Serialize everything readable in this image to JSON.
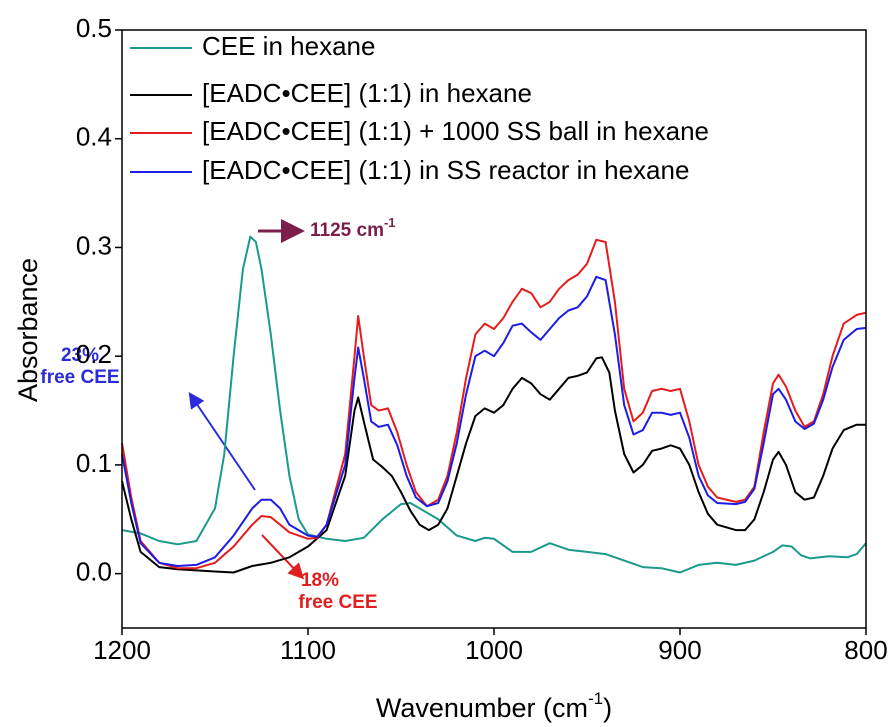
{
  "chart_data": {
    "type": "line",
    "ylabel": "Absorbance",
    "xlabel": [
      "Wavenumber (cm",
      "-1",
      ")"
    ],
    "xlim": [
      1200,
      800
    ],
    "ylim": [
      -0.05,
      0.5
    ],
    "xticks": [
      1200,
      1100,
      1000,
      900,
      800
    ],
    "yticks": [
      {
        "value": 0,
        "label": "0.0"
      },
      0.1,
      0.2,
      0.3,
      0.4,
      0.5
    ],
    "legend": "upper left",
    "annotations": [
      {
        "text": [
          "1125 cm",
          "-1"
        ],
        "color": "#7b1f4a"
      },
      {
        "text": [
          "23%",
          "free CEE"
        ],
        "color": "#2b2bd9"
      },
      {
        "text": [
          "18%",
          "free CEE"
        ],
        "color": "#e02020"
      }
    ],
    "series": [
      {
        "name": "CEE in hexane",
        "color": "#1a9a8a",
        "x": [
          1200,
          1190,
          1180,
          1170,
          1160,
          1150,
          1145,
          1140,
          1135,
          1131,
          1128,
          1125,
          1120,
          1115,
          1110,
          1105,
          1100,
          1090,
          1080,
          1070,
          1060,
          1050,
          1045,
          1040,
          1030,
          1020,
          1010,
          1005,
          1000,
          990,
          980,
          970,
          960,
          950,
          940,
          930,
          920,
          910,
          900,
          890,
          880,
          870,
          860,
          850,
          845,
          840,
          835,
          830,
          820,
          810,
          805,
          800
        ],
        "values": [
          0.04,
          0.037,
          0.03,
          0.027,
          0.03,
          0.06,
          0.11,
          0.2,
          0.28,
          0.31,
          0.305,
          0.28,
          0.22,
          0.15,
          0.09,
          0.05,
          0.036,
          0.032,
          0.03,
          0.033,
          0.05,
          0.064,
          0.065,
          0.06,
          0.05,
          0.035,
          0.03,
          0.033,
          0.032,
          0.02,
          0.02,
          0.028,
          0.022,
          0.02,
          0.018,
          0.012,
          0.006,
          0.005,
          0.001,
          0.008,
          0.01,
          0.008,
          0.012,
          0.02,
          0.026,
          0.025,
          0.017,
          0.014,
          0.016,
          0.015,
          0.018,
          0.028
        ]
      },
      {
        "name": "[EADC•CEE] (1:1) in hexane",
        "color": "#000000",
        "x": [
          1200,
          1195,
          1190,
          1180,
          1170,
          1160,
          1150,
          1140,
          1130,
          1120,
          1110,
          1100,
          1090,
          1080,
          1075,
          1073,
          1070,
          1065,
          1060,
          1055,
          1050,
          1045,
          1040,
          1035,
          1030,
          1025,
          1020,
          1015,
          1010,
          1005,
          1000,
          995,
          990,
          985,
          980,
          975,
          970,
          965,
          960,
          955,
          950,
          945,
          942,
          938,
          935,
          930,
          925,
          920,
          915,
          910,
          905,
          900,
          895,
          890,
          885,
          880,
          870,
          865,
          860,
          855,
          850,
          847,
          843,
          838,
          833,
          828,
          823,
          818,
          812,
          805,
          800
        ],
        "values": [
          0.085,
          0.05,
          0.02,
          0.006,
          0.004,
          0.003,
          0.002,
          0.001,
          0.007,
          0.01,
          0.015,
          0.025,
          0.04,
          0.09,
          0.15,
          0.162,
          0.14,
          0.105,
          0.098,
          0.09,
          0.075,
          0.058,
          0.045,
          0.04,
          0.045,
          0.06,
          0.09,
          0.12,
          0.145,
          0.152,
          0.148,
          0.155,
          0.17,
          0.18,
          0.175,
          0.165,
          0.16,
          0.17,
          0.18,
          0.182,
          0.185,
          0.198,
          0.199,
          0.185,
          0.15,
          0.11,
          0.093,
          0.1,
          0.113,
          0.115,
          0.118,
          0.115,
          0.1,
          0.075,
          0.055,
          0.045,
          0.04,
          0.04,
          0.05,
          0.075,
          0.105,
          0.112,
          0.1,
          0.075,
          0.068,
          0.07,
          0.09,
          0.115,
          0.132,
          0.137,
          0.137
        ]
      },
      {
        "name": "[EADC•CEE] (1:1) + 1000 SS ball in hexane",
        "color": "#e51c1c",
        "x": [
          1200,
          1195,
          1190,
          1180,
          1170,
          1160,
          1150,
          1140,
          1130,
          1125,
          1120,
          1115,
          1110,
          1100,
          1095,
          1090,
          1080,
          1075,
          1073,
          1070,
          1066,
          1062,
          1057,
          1052,
          1047,
          1042,
          1036,
          1030,
          1025,
          1020,
          1015,
          1010,
          1005,
          1000,
          995,
          990,
          985,
          980,
          975,
          970,
          965,
          960,
          955,
          950,
          945,
          940,
          935,
          930,
          925,
          920,
          915,
          910,
          905,
          900,
          895,
          890,
          885,
          880,
          870,
          865,
          860,
          855,
          850,
          847,
          843,
          838,
          833,
          828,
          823,
          818,
          812,
          805,
          800
        ],
        "values": [
          0.12,
          0.07,
          0.03,
          0.01,
          0.005,
          0.005,
          0.01,
          0.025,
          0.045,
          0.053,
          0.052,
          0.045,
          0.038,
          0.032,
          0.033,
          0.045,
          0.11,
          0.2,
          0.237,
          0.2,
          0.155,
          0.15,
          0.152,
          0.13,
          0.1,
          0.075,
          0.062,
          0.068,
          0.09,
          0.13,
          0.18,
          0.22,
          0.23,
          0.225,
          0.235,
          0.25,
          0.262,
          0.258,
          0.245,
          0.25,
          0.262,
          0.27,
          0.275,
          0.285,
          0.307,
          0.305,
          0.25,
          0.17,
          0.14,
          0.148,
          0.168,
          0.17,
          0.168,
          0.17,
          0.14,
          0.1,
          0.08,
          0.07,
          0.066,
          0.068,
          0.08,
          0.13,
          0.175,
          0.183,
          0.172,
          0.15,
          0.135,
          0.14,
          0.165,
          0.2,
          0.23,
          0.238,
          0.24
        ]
      },
      {
        "name": "[EADC•CEE] (1:1) in SS reactor in hexane",
        "color": "#1c1ce5",
        "x": [
          1200,
          1195,
          1190,
          1180,
          1170,
          1160,
          1150,
          1140,
          1130,
          1125,
          1120,
          1115,
          1110,
          1100,
          1095,
          1090,
          1080,
          1075,
          1073,
          1070,
          1066,
          1062,
          1057,
          1052,
          1047,
          1042,
          1036,
          1030,
          1025,
          1020,
          1015,
          1010,
          1005,
          1000,
          995,
          990,
          985,
          980,
          975,
          970,
          965,
          960,
          955,
          950,
          945,
          940,
          935,
          930,
          925,
          920,
          915,
          910,
          905,
          900,
          895,
          890,
          885,
          880,
          870,
          865,
          860,
          855,
          850,
          847,
          843,
          838,
          833,
          828,
          823,
          818,
          812,
          805,
          800
        ],
        "values": [
          0.11,
          0.065,
          0.028,
          0.01,
          0.007,
          0.008,
          0.015,
          0.035,
          0.06,
          0.068,
          0.068,
          0.06,
          0.045,
          0.035,
          0.034,
          0.045,
          0.1,
          0.18,
          0.208,
          0.18,
          0.14,
          0.135,
          0.137,
          0.118,
          0.09,
          0.07,
          0.062,
          0.065,
          0.085,
          0.12,
          0.165,
          0.2,
          0.205,
          0.2,
          0.212,
          0.228,
          0.23,
          0.222,
          0.215,
          0.225,
          0.235,
          0.242,
          0.245,
          0.255,
          0.273,
          0.27,
          0.22,
          0.155,
          0.128,
          0.132,
          0.148,
          0.148,
          0.146,
          0.148,
          0.125,
          0.09,
          0.072,
          0.065,
          0.064,
          0.066,
          0.078,
          0.12,
          0.165,
          0.17,
          0.16,
          0.14,
          0.133,
          0.138,
          0.16,
          0.19,
          0.215,
          0.225,
          0.226
        ]
      }
    ]
  }
}
